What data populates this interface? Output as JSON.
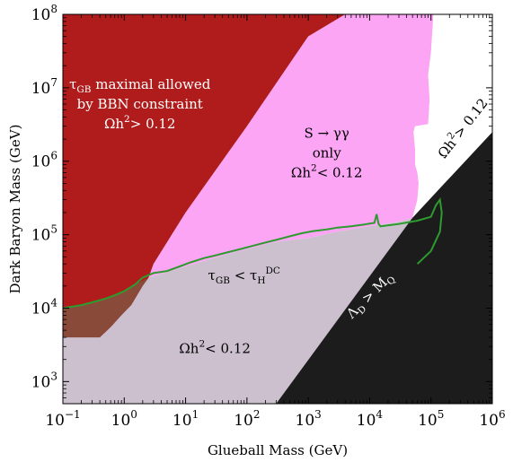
{
  "chart_data": {
    "type": "area",
    "x_scale": "log",
    "y_scale": "log",
    "xlabel": "Glueball Mass (GeV)",
    "ylabel": "Dark Baryon Mass (GeV)",
    "xlim": [
      0.1,
      1000000
    ],
    "ylim": [
      500,
      100000000
    ],
    "x_ticks": [
      {
        "value": 0.1,
        "label": "10",
        "exp": "−1"
      },
      {
        "value": 1,
        "label": "10",
        "exp": "0"
      },
      {
        "value": 10,
        "label": "10",
        "exp": "1"
      },
      {
        "value": 100,
        "label": "10",
        "exp": "2"
      },
      {
        "value": 1000,
        "label": "10",
        "exp": "3"
      },
      {
        "value": 10000,
        "label": "10",
        "exp": "4"
      },
      {
        "value": 100000,
        "label": "10",
        "exp": "5"
      },
      {
        "value": 1000000,
        "label": "10",
        "exp": "6"
      }
    ],
    "y_ticks": [
      {
        "value": 1000,
        "label": "10",
        "exp": "3"
      },
      {
        "value": 10000,
        "label": "10",
        "exp": "4"
      },
      {
        "value": 100000,
        "label": "10",
        "exp": "5"
      },
      {
        "value": 1000000,
        "label": "10",
        "exp": "6"
      },
      {
        "value": 10000000,
        "label": "10",
        "exp": "7"
      },
      {
        "value": 100000000,
        "label": "10",
        "exp": "8"
      }
    ],
    "regions": [
      {
        "id": "bbn",
        "color": "#b01c1c",
        "points": [
          [
            0.1,
            4000
          ],
          [
            0.4,
            4000
          ],
          [
            0.6,
            5500
          ],
          [
            0.9,
            8000
          ],
          [
            1.3,
            11000
          ],
          [
            2,
            20000
          ],
          [
            2.5,
            26000
          ],
          [
            3,
            40000
          ],
          [
            10,
            200000
          ],
          [
            100,
            3000000
          ],
          [
            1000,
            50000000
          ],
          [
            4000,
            100000000
          ],
          [
            0.1,
            100000000
          ]
        ],
        "label": {
          "lines": [
            "τ_GB maximal allowed",
            "by BBN constraint",
            "Ωh^2> 0.12"
          ],
          "x": 1.8,
          "y": 6000000,
          "color": "#ffffff"
        }
      },
      {
        "id": "s-to-gg",
        "color": "#fca5f5",
        "points": [
          [
            2.5,
            26000
          ],
          [
            10,
            37000
          ],
          [
            50,
            55000
          ],
          [
            300,
            80000
          ],
          [
            1000,
            90000
          ],
          [
            3000,
            110000
          ],
          [
            10000,
            130000
          ],
          [
            30000,
            150000
          ],
          [
            50000,
            170000
          ],
          [
            60000,
            300000
          ],
          [
            63000,
            500000
          ],
          [
            60000,
            700000
          ],
          [
            55000,
            900000
          ],
          [
            55000,
            1500000
          ],
          [
            52000,
            2500000
          ],
          [
            55000,
            3000000
          ],
          [
            90000,
            3200000
          ],
          [
            95000,
            7000000
          ],
          [
            90000,
            15000000
          ],
          [
            100000,
            30000000
          ],
          [
            110000,
            100000000
          ],
          [
            4000,
            100000000
          ],
          [
            1000,
            50000000
          ],
          [
            100,
            3000000
          ],
          [
            10,
            200000
          ],
          [
            3,
            40000
          ]
        ],
        "label": {
          "lines": [
            "S → γγ",
            "only",
            "Ωh^2< 0.12"
          ],
          "x": 2000,
          "y": 1300000,
          "color": "#000000"
        }
      },
      {
        "id": "white-overclosed",
        "color": "#ffffff",
        "points": [
          [
            50000,
            170000
          ],
          [
            1000000,
            2500000
          ],
          [
            1000000,
            100000000
          ],
          [
            110000,
            100000000
          ],
          [
            100000,
            30000000
          ],
          [
            90000,
            15000000
          ],
          [
            95000,
            7000000
          ],
          [
            90000,
            3200000
          ],
          [
            55000,
            3000000
          ],
          [
            52000,
            2500000
          ],
          [
            55000,
            1500000
          ],
          [
            55000,
            900000
          ],
          [
            60000,
            700000
          ],
          [
            63000,
            500000
          ],
          [
            60000,
            300000
          ]
        ],
        "label": {
          "lines": [
            "Ωh^2> 0.12"
          ],
          "x": 330000,
          "y": 2800000,
          "color": "#000000",
          "rotate": -52
        }
      },
      {
        "id": "grey-allowed",
        "color": "#ccc0cf",
        "points": [
          [
            0.1,
            500
          ],
          [
            0.1,
            4000
          ],
          [
            0.4,
            4000
          ],
          [
            0.6,
            5500
          ],
          [
            0.9,
            8000
          ],
          [
            1.3,
            11000
          ],
          [
            2,
            20000
          ],
          [
            2.5,
            26000
          ],
          [
            10,
            37000
          ],
          [
            50,
            55000
          ],
          [
            300,
            80000
          ],
          [
            1000,
            90000
          ],
          [
            3000,
            110000
          ],
          [
            10000,
            130000
          ],
          [
            30000,
            150000
          ],
          [
            50000,
            170000
          ],
          [
            200000,
            600000
          ],
          [
            300,
            500
          ]
        ],
        "labels": [
          {
            "lines": [
              "τ_GB < τ_H^DC"
            ],
            "x": 90,
            "y": 28000,
            "color": "#000000"
          },
          {
            "lines": [
              "Ωh^2< 0.12"
            ],
            "x": 30,
            "y": 2800,
            "color": "#000000"
          }
        ]
      },
      {
        "id": "brown-overlap",
        "color": "#8a4a3a",
        "points": [
          [
            0.1,
            4000
          ],
          [
            0.1,
            10000
          ],
          [
            0.3,
            12000
          ],
          [
            0.6,
            14000
          ],
          [
            1,
            17000
          ],
          [
            1.5,
            21000
          ],
          [
            2.5,
            26000
          ],
          [
            2,
            20000
          ],
          [
            1.3,
            11000
          ],
          [
            0.9,
            8000
          ],
          [
            0.6,
            5500
          ],
          [
            0.4,
            4000
          ]
        ]
      },
      {
        "id": "black-lambda",
        "color": "#1c1c1c",
        "points": [
          [
            300,
            500
          ],
          [
            1000000,
            500
          ],
          [
            1000000,
            2500000
          ],
          [
            50000,
            170000
          ]
        ],
        "label": {
          "lines": [
            "Λ_D > M_Q"
          ],
          "x": 10000,
          "y": 15000,
          "color": "#ffffff",
          "rotate": -45
        }
      }
    ],
    "series": [
      {
        "type": "line",
        "color": "#2e9b2e",
        "x": [
          0.1,
          0.2,
          0.3,
          0.5,
          0.7,
          1,
          1.5,
          2,
          3,
          5,
          8,
          12,
          20,
          30,
          50,
          80,
          120,
          200,
          300,
          500,
          800,
          1200,
          2000,
          3000,
          5000,
          8000,
          12000,
          13000,
          14000,
          15000,
          30000,
          60000,
          100000,
          120000,
          140000,
          150000,
          140000,
          100000,
          60000
        ],
        "y": [
          10000,
          11000,
          12000,
          13500,
          15000,
          17000,
          21000,
          26000,
          30000,
          32000,
          37000,
          42000,
          48000,
          52000,
          58000,
          64000,
          70000,
          78000,
          85000,
          95000,
          105000,
          112000,
          118000,
          125000,
          130000,
          137000,
          145000,
          190000,
          140000,
          130000,
          140000,
          155000,
          175000,
          250000,
          300000,
          200000,
          110000,
          60000,
          40000
        ]
      }
    ]
  }
}
